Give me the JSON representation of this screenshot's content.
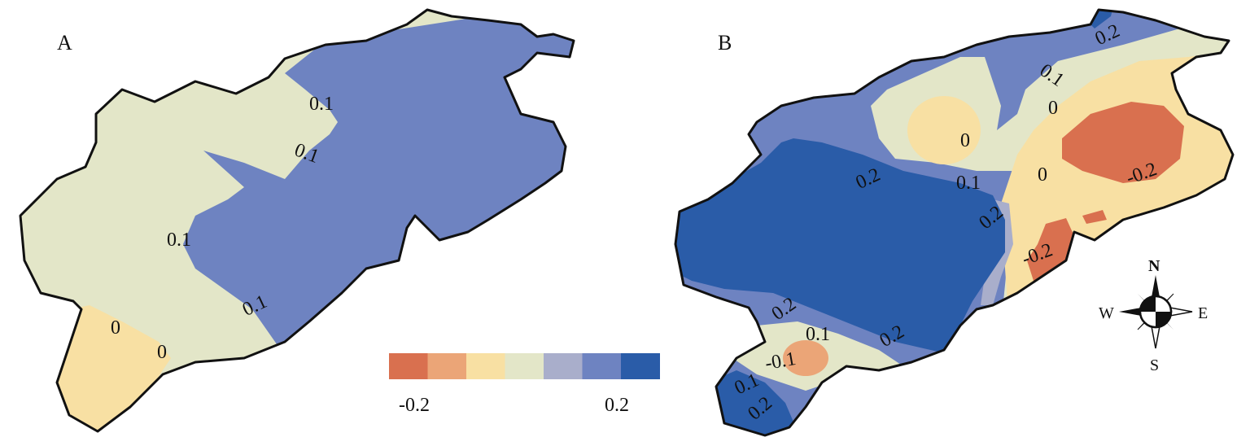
{
  "panels": [
    {
      "label": "A",
      "contours": [
        "0.1",
        "0.1",
        "0.1",
        "0.1",
        "0",
        "0"
      ]
    },
    {
      "label": "B",
      "contours": [
        "0.2",
        "0.1",
        "0",
        "0",
        "0",
        "-0.2",
        "0.2",
        "0.1",
        "0.2",
        "-0.2",
        "0.2",
        "0.1",
        "0.2",
        "-0.1",
        "0.1",
        "0.2"
      ]
    }
  ],
  "legend": {
    "min_label": "-0.2",
    "max_label": "0.2",
    "colors": [
      "#d9704f",
      "#eba577",
      "#f8e0a3",
      "#e3e6c8",
      "#a9aecb",
      "#6e83c1",
      "#2a5ca8"
    ]
  },
  "compass": {
    "north": "N",
    "south": "S",
    "east": "E",
    "west": "W"
  }
}
